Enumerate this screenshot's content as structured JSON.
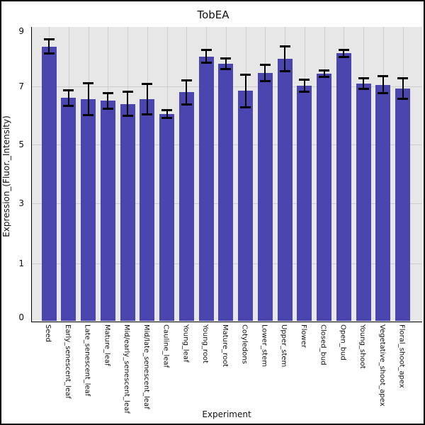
{
  "title": "TobEA",
  "y_axis": {
    "label": "Expression_(Fluor._Intensity)",
    "ticks": [
      "9",
      "7",
      "5",
      "3",
      "1",
      "0"
    ]
  },
  "x_axis": {
    "label": "Experiment"
  },
  "chart_data": {
    "type": "bar",
    "title": "TobEA",
    "xlabel": "Experiment",
    "ylabel": "Expression_(Fluor._Intensity)",
    "categories": [
      "Seed",
      "Early_senescent_leaf",
      "Late_senescent_leaf",
      "Mature_leaf",
      "Mid/early_senescent_leaf",
      "Mid/late_senescent_leaf",
      "Cauline_leaf",
      "Young_leaf",
      "Young_root",
      "Mature_root",
      "Cotyledons",
      "Lower_stem",
      "Upper_stem",
      "Flower",
      "Closed_bud",
      "Open_bud",
      "Young_shoot",
      "Vegetative_shoot_apex",
      "Floral_shoot_apex"
    ],
    "values": [
      8.45,
      6.6,
      6.57,
      6.5,
      6.4,
      6.57,
      6.05,
      6.8,
      8.08,
      7.82,
      6.85,
      7.49,
      8.0,
      7.03,
      7.46,
      8.2,
      7.1,
      7.06,
      6.93
    ],
    "errors": [
      0.25,
      0.26,
      0.55,
      0.27,
      0.41,
      0.52,
      0.13,
      0.42,
      0.23,
      0.2,
      0.58,
      0.3,
      0.45,
      0.22,
      0.12,
      0.13,
      0.2,
      0.3,
      0.36
    ],
    "ytick_values": [
      9,
      7,
      5,
      3,
      1,
      0
    ],
    "ylim_note": "ticks equally spaced top-to-bottom",
    "grid": true,
    "legend_position": "none",
    "bar_color": "#4b45af",
    "error_color": "#000000",
    "plot_bg": "#e7e7e7",
    "grid_color": "#cdcdcd",
    "axis_color": "#000000"
  }
}
